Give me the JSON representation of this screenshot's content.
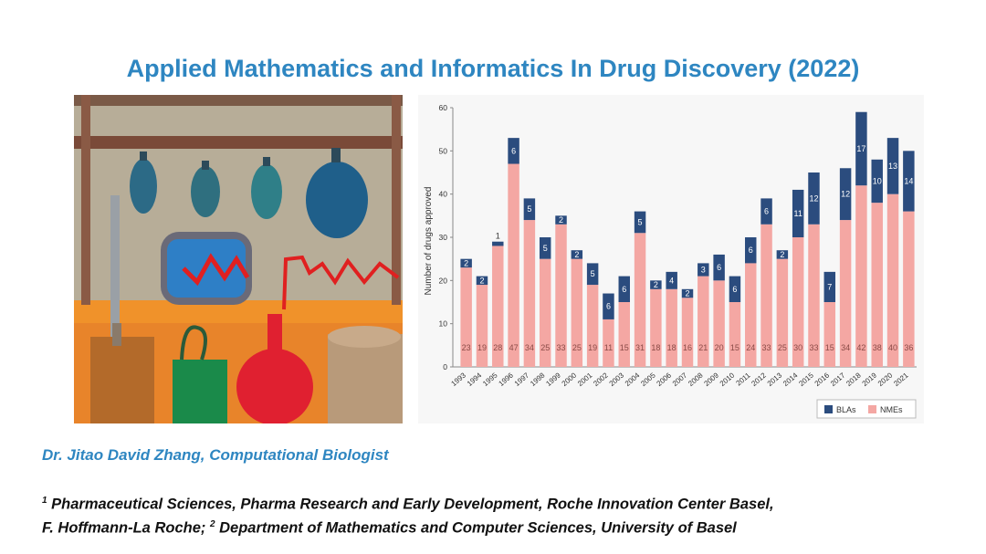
{
  "slide": {
    "title": "Applied Mathematics and Informatics In Drug Discovery (2022)",
    "author": "Dr. Jitao David Zhang, Computational Biologist",
    "affiliation_1_marker": "1",
    "affiliation_1_text": " Pharmaceutical Sciences, Pharma Research and Early Development, Roche Innovation Center Basel,",
    "affiliation_1b_text": "F. Hoffmann-La Roche; ",
    "affiliation_2_marker": "2",
    "affiliation_2_text": " Department of Mathematics and Computer Sciences, University of Basel"
  },
  "painting": {
    "description_icon": "lab-flask-painting"
  },
  "chart_data": {
    "type": "bar",
    "stacked": true,
    "categories": [
      "1993",
      "1994",
      "1995",
      "1996",
      "1997",
      "1998",
      "1999",
      "2000",
      "2001",
      "2002",
      "2003",
      "2004",
      "2005",
      "2006",
      "2007",
      "2008",
      "2009",
      "2010",
      "2011",
      "2012",
      "2013",
      "2014",
      "2015",
      "2016",
      "2017",
      "2018",
      "2019",
      "2020",
      "2021"
    ],
    "series": [
      {
        "name": "NMEs",
        "color": "#f4a7a3",
        "values": [
          23,
          19,
          28,
          47,
          34,
          25,
          33,
          25,
          19,
          11,
          15,
          31,
          18,
          18,
          16,
          21,
          20,
          15,
          24,
          33,
          25,
          30,
          33,
          15,
          34,
          42,
          38,
          40,
          36
        ]
      },
      {
        "name": "BLAs",
        "color": "#2b4c7e",
        "values": [
          2,
          2,
          1,
          6,
          5,
          5,
          2,
          2,
          5,
          6,
          6,
          5,
          2,
          4,
          2,
          3,
          6,
          6,
          6,
          6,
          2,
          11,
          12,
          7,
          12,
          17,
          10,
          13,
          14
        ]
      }
    ],
    "ylabel": "Number of drugs approved",
    "xlabel": "",
    "ylim": [
      0,
      60
    ],
    "yticks": [
      0,
      10,
      20,
      30,
      40,
      50,
      60
    ],
    "legend_position": "bottom-right",
    "grid": false,
    "label_colors": {
      "nme_label": "#8a4b47",
      "bla_label": "#ffffff"
    }
  }
}
